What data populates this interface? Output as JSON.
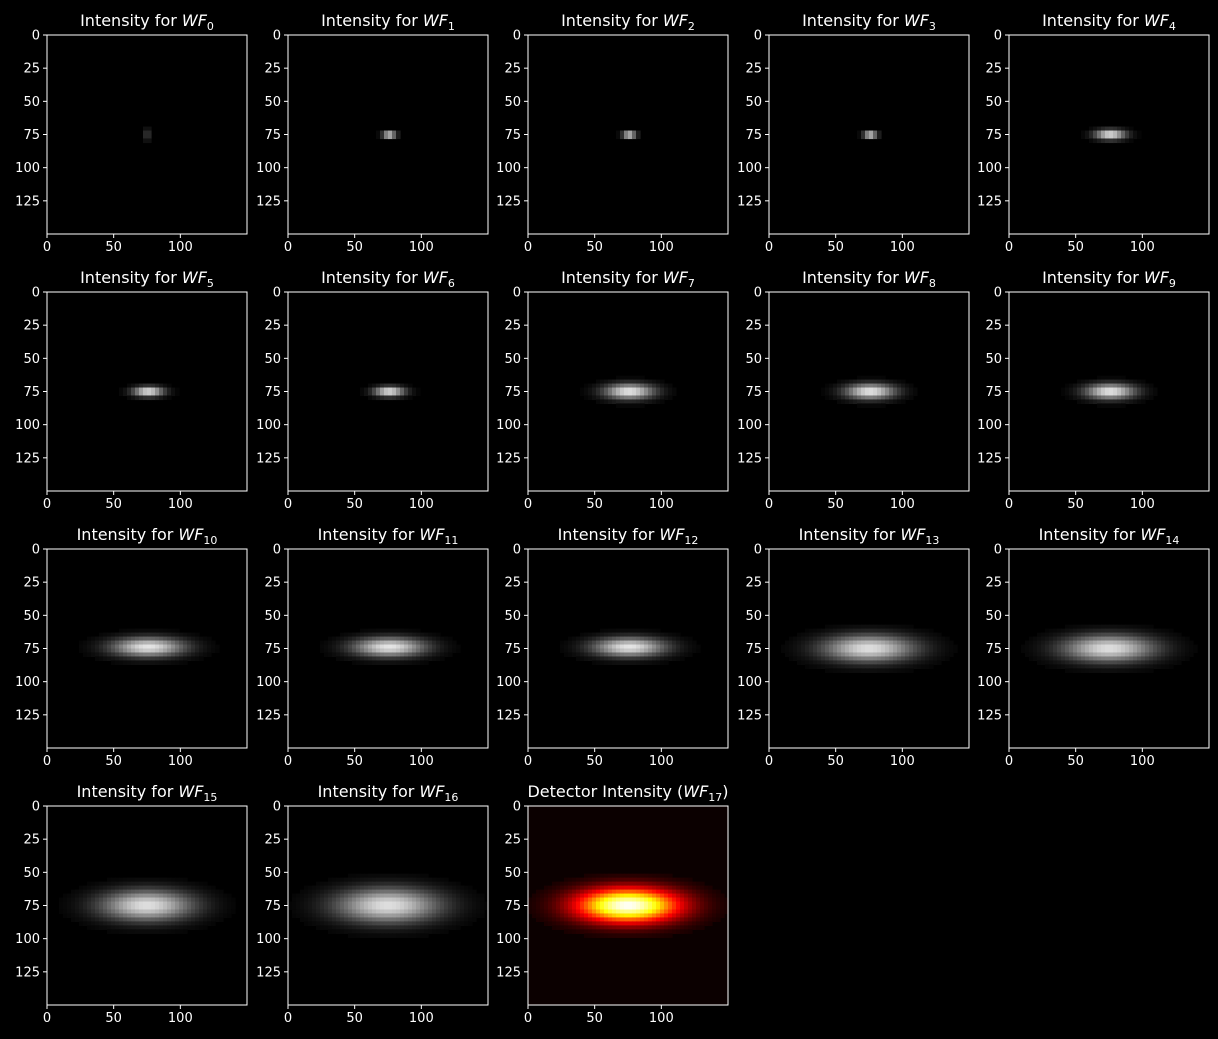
{
  "figure": {
    "background": "#000000",
    "foreground": "#ffffff"
  },
  "chart_data": [
    {
      "type": "heatmap",
      "title_prefix": "Intensity for ",
      "title_var": "WF",
      "title_sub": "0",
      "title_suffix": "",
      "colormap": "gray",
      "xlim": [
        0,
        150
      ],
      "ylim": [
        150,
        0
      ],
      "xticks": [
        0,
        50,
        100
      ],
      "yticks": [
        0,
        25,
        50,
        75,
        100,
        125
      ],
      "blob": {
        "cx": 75,
        "cy": 75,
        "sx": 0.8,
        "sy": 3.2,
        "peak": 1.0
      }
    },
    {
      "type": "heatmap",
      "title_prefix": "Intensity for ",
      "title_var": "WF",
      "title_sub": "1",
      "title_suffix": "",
      "colormap": "gray",
      "xlim": [
        0,
        150
      ],
      "ylim": [
        150,
        0
      ],
      "xticks": [
        0,
        50,
        100
      ],
      "yticks": [
        0,
        25,
        50,
        75,
        100,
        125
      ],
      "blob": {
        "cx": 76,
        "cy": 75,
        "sx": 3.5,
        "sy": 1.6,
        "peak": 1.0
      }
    },
    {
      "type": "heatmap",
      "title_prefix": "Intensity for ",
      "title_var": "WF",
      "title_sub": "2",
      "title_suffix": "",
      "colormap": "gray",
      "xlim": [
        0,
        150
      ],
      "ylim": [
        150,
        0
      ],
      "xticks": [
        0,
        50,
        100
      ],
      "yticks": [
        0,
        25,
        50,
        75,
        100,
        125
      ],
      "blob": {
        "cx": 76,
        "cy": 75,
        "sx": 3.5,
        "sy": 1.6,
        "peak": 1.0
      }
    },
    {
      "type": "heatmap",
      "title_prefix": "Intensity for ",
      "title_var": "WF",
      "title_sub": "3",
      "title_suffix": "",
      "colormap": "gray",
      "xlim": [
        0,
        150
      ],
      "ylim": [
        150,
        0
      ],
      "xticks": [
        0,
        50,
        100
      ],
      "yticks": [
        0,
        25,
        50,
        75,
        100,
        125
      ],
      "blob": {
        "cx": 76,
        "cy": 75,
        "sx": 3.5,
        "sy": 1.6,
        "peak": 1.0
      }
    },
    {
      "type": "heatmap",
      "title_prefix": "Intensity for ",
      "title_var": "WF",
      "title_sub": "4",
      "title_suffix": "",
      "colormap": "gray",
      "xlim": [
        0,
        150
      ],
      "ylim": [
        150,
        0
      ],
      "xticks": [
        0,
        50,
        100
      ],
      "yticks": [
        0,
        25,
        50,
        75,
        100,
        125
      ],
      "blob": {
        "cx": 76,
        "cy": 75,
        "sx": 8,
        "sy": 2.5,
        "peak": 0.95
      }
    },
    {
      "type": "heatmap",
      "title_prefix": "Intensity for ",
      "title_var": "WF",
      "title_sub": "5",
      "title_suffix": "",
      "colormap": "gray",
      "xlim": [
        0,
        150
      ],
      "ylim": [
        150,
        0
      ],
      "xticks": [
        0,
        50,
        100
      ],
      "yticks": [
        0,
        25,
        50,
        75,
        100,
        125
      ],
      "blob": {
        "cx": 76,
        "cy": 75,
        "sx": 8,
        "sy": 2.5,
        "peak": 0.95
      }
    },
    {
      "type": "heatmap",
      "title_prefix": "Intensity for ",
      "title_var": "WF",
      "title_sub": "6",
      "title_suffix": "",
      "colormap": "gray",
      "xlim": [
        0,
        150
      ],
      "ylim": [
        150,
        0
      ],
      "xticks": [
        0,
        50,
        100
      ],
      "yticks": [
        0,
        25,
        50,
        75,
        100,
        125
      ],
      "blob": {
        "cx": 76,
        "cy": 75,
        "sx": 8,
        "sy": 2.5,
        "peak": 0.95
      }
    },
    {
      "type": "heatmap",
      "title_prefix": "Intensity for ",
      "title_var": "WF",
      "title_sub": "7",
      "title_suffix": "",
      "colormap": "gray",
      "xlim": [
        0,
        150
      ],
      "ylim": [
        150,
        0
      ],
      "xticks": [
        0,
        50,
        100
      ],
      "yticks": [
        0,
        25,
        50,
        75,
        100,
        125
      ],
      "blob": {
        "cx": 76,
        "cy": 75,
        "sx": 13,
        "sy": 4,
        "peak": 0.92
      }
    },
    {
      "type": "heatmap",
      "title_prefix": "Intensity for ",
      "title_var": "WF",
      "title_sub": "8",
      "title_suffix": "",
      "colormap": "gray",
      "xlim": [
        0,
        150
      ],
      "ylim": [
        150,
        0
      ],
      "xticks": [
        0,
        50,
        100
      ],
      "yticks": [
        0,
        25,
        50,
        75,
        100,
        125
      ],
      "blob": {
        "cx": 76,
        "cy": 75,
        "sx": 13,
        "sy": 4,
        "peak": 0.92
      }
    },
    {
      "type": "heatmap",
      "title_prefix": "Intensity for ",
      "title_var": "WF",
      "title_sub": "9",
      "title_suffix": "",
      "colormap": "gray",
      "xlim": [
        0,
        150
      ],
      "ylim": [
        150,
        0
      ],
      "xticks": [
        0,
        50,
        100
      ],
      "yticks": [
        0,
        25,
        50,
        75,
        100,
        125
      ],
      "blob": {
        "cx": 76,
        "cy": 75,
        "sx": 13,
        "sy": 4,
        "peak": 0.92
      }
    },
    {
      "type": "heatmap",
      "title_prefix": "Intensity for ",
      "title_var": "WF",
      "title_sub": "10",
      "title_suffix": "",
      "colormap": "gray",
      "xlim": [
        0,
        150
      ],
      "ylim": [
        150,
        0
      ],
      "xticks": [
        0,
        50,
        100
      ],
      "yticks": [
        0,
        25,
        50,
        75,
        100,
        125
      ],
      "blob": {
        "cx": 76,
        "cy": 74,
        "sx": 19,
        "sy": 5,
        "peak": 0.9
      }
    },
    {
      "type": "heatmap",
      "title_prefix": "Intensity for ",
      "title_var": "WF",
      "title_sub": "11",
      "title_suffix": "",
      "colormap": "gray",
      "xlim": [
        0,
        150
      ],
      "ylim": [
        150,
        0
      ],
      "xticks": [
        0,
        50,
        100
      ],
      "yticks": [
        0,
        25,
        50,
        75,
        100,
        125
      ],
      "blob": {
        "cx": 76,
        "cy": 74,
        "sx": 19,
        "sy": 5,
        "peak": 0.9
      }
    },
    {
      "type": "heatmap",
      "title_prefix": "Intensity for ",
      "title_var": "WF",
      "title_sub": "12",
      "title_suffix": "",
      "colormap": "gray",
      "xlim": [
        0,
        150
      ],
      "ylim": [
        150,
        0
      ],
      "xticks": [
        0,
        50,
        100
      ],
      "yticks": [
        0,
        25,
        50,
        75,
        100,
        125
      ],
      "blob": {
        "cx": 76,
        "cy": 74,
        "sx": 19,
        "sy": 5,
        "peak": 0.9
      }
    },
    {
      "type": "heatmap",
      "title_prefix": "Intensity for ",
      "title_var": "WF",
      "title_sub": "13",
      "title_suffix": "",
      "colormap": "gray",
      "xlim": [
        0,
        150
      ],
      "ylim": [
        150,
        0
      ],
      "xticks": [
        0,
        50,
        100
      ],
      "yticks": [
        0,
        25,
        50,
        75,
        100,
        125
      ],
      "blob": {
        "cx": 75,
        "cy": 75,
        "sx": 24,
        "sy": 7,
        "peak": 0.88
      }
    },
    {
      "type": "heatmap",
      "title_prefix": "Intensity for ",
      "title_var": "WF",
      "title_sub": "14",
      "title_suffix": "",
      "colormap": "gray",
      "xlim": [
        0,
        150
      ],
      "ylim": [
        150,
        0
      ],
      "xticks": [
        0,
        50,
        100
      ],
      "yticks": [
        0,
        25,
        50,
        75,
        100,
        125
      ],
      "blob": {
        "cx": 75,
        "cy": 75,
        "sx": 24,
        "sy": 7,
        "peak": 0.88
      }
    },
    {
      "type": "heatmap",
      "title_prefix": "Intensity for ",
      "title_var": "WF",
      "title_sub": "15",
      "title_suffix": "",
      "colormap": "gray",
      "xlim": [
        0,
        150
      ],
      "ylim": [
        150,
        0
      ],
      "xticks": [
        0,
        50,
        100
      ],
      "yticks": [
        0,
        25,
        50,
        75,
        100,
        125
      ],
      "blob": {
        "cx": 75,
        "cy": 75,
        "sx": 24,
        "sy": 8,
        "peak": 0.88
      }
    },
    {
      "type": "heatmap",
      "title_prefix": "Intensity for ",
      "title_var": "WF",
      "title_sub": "16",
      "title_suffix": "",
      "colormap": "gray",
      "xlim": [
        0,
        150
      ],
      "ylim": [
        150,
        0
      ],
      "xticks": [
        0,
        50,
        100
      ],
      "yticks": [
        0,
        25,
        50,
        75,
        100,
        125
      ],
      "blob": {
        "cx": 75,
        "cy": 75,
        "sx": 27,
        "sy": 9,
        "peak": 0.88
      }
    },
    {
      "type": "heatmap",
      "title_prefix": "Detector Intensity (",
      "title_var": "WF",
      "title_sub": "17",
      "title_suffix": ")",
      "colormap": "hot",
      "xlim": [
        0,
        150
      ],
      "ylim": [
        150,
        0
      ],
      "xticks": [
        0,
        50,
        100
      ],
      "yticks": [
        0,
        25,
        50,
        75,
        100,
        125
      ],
      "blob": {
        "cx": 75,
        "cy": 75,
        "sx": 27,
        "sy": 9,
        "peak": 1.0
      }
    }
  ]
}
